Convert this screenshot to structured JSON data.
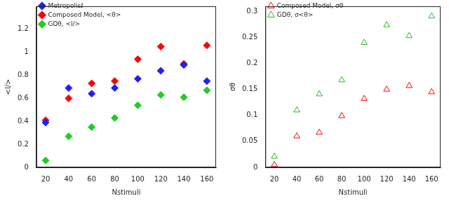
{
  "chart_data": [
    {
      "type": "scatter",
      "x_label": "Nstimuli",
      "y_label": "<l/>",
      "x": [
        20,
        40,
        60,
        80,
        100,
        120,
        140,
        160
      ],
      "series": [
        {
          "name": "Metropolisℓ",
          "color": "#1f1fff",
          "marker": "diamond",
          "values": [
            0.39,
            0.69,
            0.64,
            0.69,
            0.77,
            0.84,
            0.89,
            0.75
          ]
        },
        {
          "name": "Composed Model, <θ>",
          "color": "#ff0000",
          "marker": "diamond",
          "values": [
            0.41,
            0.6,
            0.73,
            0.75,
            0.94,
            1.05,
            0.9,
            1.06
          ]
        },
        {
          "name": "GDθ, <l/>",
          "color": "#22cc22",
          "marker": "diamond",
          "values": [
            0.06,
            0.27,
            0.35,
            0.43,
            0.54,
            0.63,
            0.61,
            0.67
          ]
        }
      ],
      "xlim": [
        12,
        168
      ],
      "xticks": [
        20,
        40,
        60,
        80,
        100,
        120,
        140,
        160
      ],
      "ylim": [
        0,
        1.4
      ],
      "yticks": [
        0,
        0.2,
        0.4,
        0.6,
        0.8,
        1,
        1.2
      ],
      "grid": false,
      "legend": "top-left"
    },
    {
      "type": "scatter",
      "x_label": "Nstimuli",
      "y_label": "σθ",
      "x": [
        20,
        40,
        60,
        80,
        100,
        120,
        140,
        160
      ],
      "series": [
        {
          "name": "Composed Model, σθ",
          "color": "#ff0000",
          "marker": "open_triangle",
          "values": [
            0.005,
            0.06,
            0.067,
            0.099,
            0.132,
            0.15,
            0.157,
            0.145
          ]
        },
        {
          "name": "GDθ, σ<θ>",
          "color": "#22bb22",
          "marker": "open_triangle",
          "values": [
            0.021,
            0.11,
            0.141,
            0.168,
            0.24,
            0.274,
            0.253,
            0.291
          ]
        }
      ],
      "xlim": [
        12,
        168
      ],
      "xticks": [
        20,
        40,
        60,
        80,
        100,
        120,
        140,
        160
      ],
      "ylim": [
        0,
        0.31
      ],
      "yticks": [
        0,
        0.05,
        0.1,
        0.15,
        0.2,
        0.25,
        0.3
      ],
      "grid": false,
      "legend": "top-left"
    }
  ]
}
